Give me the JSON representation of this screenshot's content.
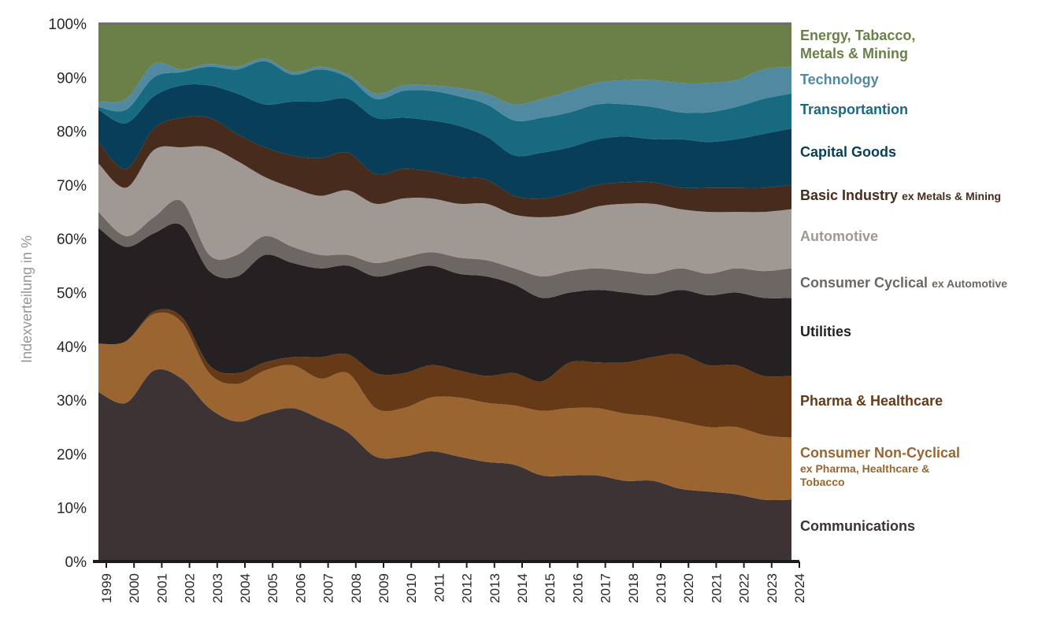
{
  "chart_data": {
    "type": "area",
    "stacked": true,
    "ylabel": "Indexverteilung in %",
    "xlabel": "",
    "ylim": [
      0,
      100
    ],
    "ytick_labels": [
      "0%",
      "10%",
      "20%",
      "30%",
      "40%",
      "50%",
      "60%",
      "70%",
      "80%",
      "90%",
      "100%"
    ],
    "x": [
      "1999",
      "2000",
      "2001",
      "2002",
      "2003",
      "2004",
      "2005",
      "2006",
      "2007",
      "2008",
      "2009",
      "2010",
      "2011",
      "2012",
      "2013",
      "2014",
      "2015",
      "2016",
      "2017",
      "2018",
      "2019",
      "2020",
      "2021",
      "2022",
      "2023",
      "2024"
    ],
    "series": [
      {
        "name": "Communications",
        "color": "#3d3335",
        "values": [
          31.5,
          29.5,
          35.5,
          34.0,
          28.5,
          26.0,
          27.5,
          28.5,
          26.5,
          24.0,
          19.5,
          19.5,
          20.5,
          19.5,
          18.5,
          18.0,
          16.0,
          16.0,
          16.0,
          15.0,
          15.0,
          13.5,
          13.0,
          12.5,
          11.5,
          11.5
        ]
      },
      {
        "name": "Consumer Non-Cyclical",
        "color": "#9a6530",
        "values": [
          9.0,
          11.5,
          10.5,
          10.5,
          6.5,
          7.0,
          8.0,
          8.0,
          7.5,
          11.0,
          9.0,
          9.0,
          10.0,
          11.0,
          11.0,
          11.0,
          12.0,
          12.5,
          12.5,
          12.5,
          12.0,
          12.5,
          12.0,
          12.5,
          12.0,
          11.5
        ]
      },
      {
        "name": "Pharma & Healthcare",
        "color": "#663a17",
        "values": [
          0.0,
          0.0,
          0.5,
          1.0,
          1.5,
          2.0,
          1.5,
          1.5,
          4.0,
          3.5,
          6.5,
          6.5,
          6.0,
          5.0,
          5.0,
          6.0,
          5.5,
          8.5,
          8.5,
          9.5,
          11.0,
          12.5,
          11.5,
          11.5,
          11.0,
          11.5
        ]
      },
      {
        "name": "Utilities",
        "color": "#252123",
        "values": [
          21.5,
          17.5,
          14.5,
          17.0,
          17.5,
          18.0,
          20.0,
          17.5,
          16.5,
          16.5,
          18.0,
          19.0,
          18.5,
          18.0,
          18.5,
          16.5,
          15.5,
          13.0,
          13.5,
          13.0,
          11.5,
          12.0,
          13.0,
          13.5,
          14.5,
          14.5
        ]
      },
      {
        "name": "Consumer Cyclical",
        "color": "#6d6764",
        "values": [
          3.0,
          2.0,
          3.0,
          4.5,
          3.0,
          4.0,
          3.5,
          3.0,
          2.5,
          2.0,
          2.5,
          2.5,
          2.5,
          3.0,
          3.0,
          3.0,
          4.0,
          4.0,
          4.0,
          4.0,
          4.0,
          4.0,
          4.0,
          4.5,
          5.0,
          5.5
        ]
      },
      {
        "name": "Automotive",
        "color": "#a09892",
        "values": [
          9.0,
          9.0,
          12.5,
          10.0,
          20.0,
          17.5,
          11.0,
          11.0,
          11.0,
          12.0,
          11.0,
          11.0,
          10.0,
          10.0,
          10.5,
          10.0,
          11.0,
          10.5,
          11.5,
          12.5,
          13.0,
          11.0,
          11.5,
          10.5,
          11.0,
          11.0
        ]
      },
      {
        "name": "Basic Industry",
        "color": "#472b1c",
        "values": [
          4.0,
          3.5,
          4.0,
          5.5,
          5.5,
          5.0,
          5.5,
          6.0,
          7.0,
          7.0,
          5.5,
          5.5,
          5.0,
          5.0,
          4.5,
          3.5,
          3.5,
          4.0,
          4.0,
          4.0,
          4.0,
          4.0,
          4.5,
          4.5,
          4.5,
          4.5
        ]
      },
      {
        "name": "Capital Goods",
        "color": "#083e58",
        "values": [
          6.0,
          8.5,
          6.0,
          6.0,
          6.0,
          7.5,
          8.0,
          10.0,
          10.5,
          10.0,
          10.5,
          9.5,
          9.5,
          9.5,
          8.0,
          7.5,
          8.5,
          8.5,
          8.5,
          8.5,
          8.0,
          9.0,
          8.5,
          9.0,
          10.0,
          10.5
        ]
      },
      {
        "name": "Transportantion",
        "color": "#186a80",
        "values": [
          0.5,
          2.5,
          3.5,
          2.5,
          3.5,
          4.5,
          8.0,
          5.0,
          6.0,
          4.0,
          3.5,
          5.0,
          5.5,
          5.5,
          6.0,
          6.5,
          6.5,
          6.5,
          6.5,
          6.0,
          6.0,
          5.0,
          5.5,
          6.0,
          6.5,
          6.5
        ]
      },
      {
        "name": "Technology",
        "color": "#5189a0",
        "values": [
          1.0,
          2.0,
          2.5,
          0.5,
          0.5,
          0.5,
          0.5,
          0.5,
          0.5,
          0.5,
          1.0,
          1.0,
          1.0,
          1.5,
          2.0,
          3.0,
          3.5,
          4.0,
          4.0,
          4.5,
          5.0,
          5.5,
          5.5,
          5.0,
          5.5,
          5.0
        ]
      },
      {
        "name": "Energy, Tabacco, Metals & Mining",
        "color": "#6b8048",
        "values": [
          14.5,
          14.0,
          7.5,
          8.5,
          7.5,
          8.0,
          6.5,
          9.0,
          8.0,
          9.5,
          13.0,
          12.5,
          12.5,
          12.5,
          13.0,
          15.0,
          14.0,
          12.5,
          11.0,
          10.5,
          10.5,
          11.0,
          11.0,
          10.5,
          8.5,
          8.0
        ]
      }
    ],
    "legend": [
      {
        "label": "Energy, Tabacco, Metals & Mining",
        "color": "#6b8048"
      },
      {
        "label": "Technology",
        "color": "#5189a0"
      },
      {
        "label": "Transportantion",
        "color": "#186a80"
      },
      {
        "label": "Capital Goods",
        "color": "#083e58"
      },
      {
        "label": "Basic Industry",
        "sub": "ex Metals & Mining",
        "color": "#472b1c"
      },
      {
        "label": "Automotive",
        "color": "#a09892"
      },
      {
        "label": "Consumer Cyclical",
        "sub": "ex Automotive",
        "color": "#6d6764"
      },
      {
        "label": "Utilities",
        "color": "#252123"
      },
      {
        "label": "Pharma & Healthcare",
        "color": "#663a17"
      },
      {
        "label": "Consumer Non-Cyclical",
        "note": "ex Pharma, Healthcare & Tobacco",
        "color": "#9a6530"
      },
      {
        "label": "Communications",
        "color": "#3d3335"
      }
    ]
  }
}
